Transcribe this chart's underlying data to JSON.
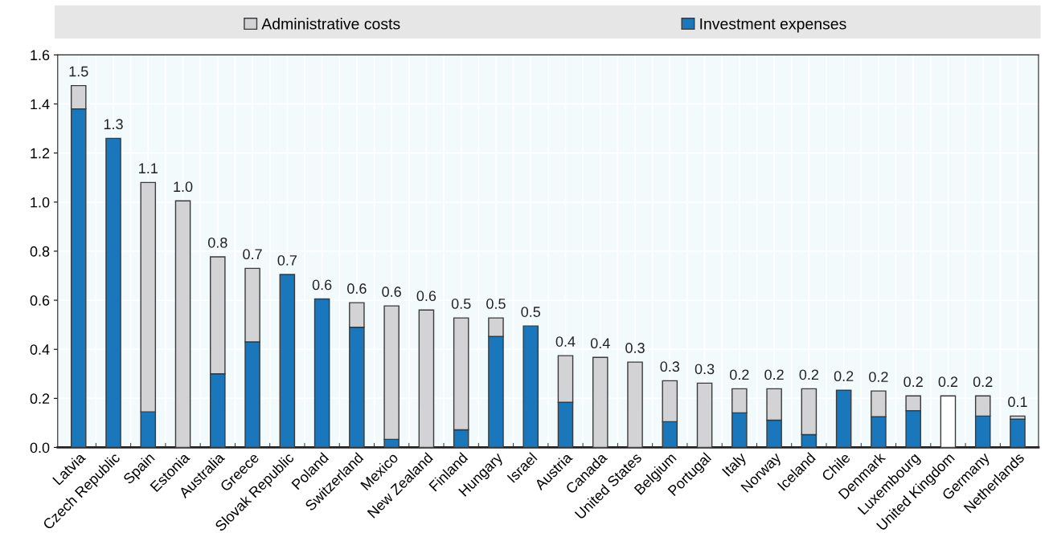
{
  "chart_data": {
    "type": "bar",
    "stacked": true,
    "categories": [
      "Latvia",
      "Czech Republic",
      "Spain",
      "Estonia",
      "Australia",
      "Greece",
      "Slovak Republic",
      "Poland",
      "Switzerland",
      "Mexico",
      "New Zealand",
      "Finland",
      "Hungary",
      "Israel",
      "Austria",
      "Canada",
      "United States",
      "Belgium",
      "Portugal",
      "Italy",
      "Norway",
      "Iceland",
      "Chile",
      "Denmark",
      "Luxembourg",
      "United Kingdom",
      "Germany",
      "Netherlands"
    ],
    "series": [
      {
        "name": "Investment expenses",
        "color": "#1a77bb",
        "values": [
          1.38,
          1.26,
          0.145,
          null,
          0.3,
          0.43,
          0.705,
          0.605,
          0.49,
          0.033,
          null,
          0.072,
          0.452,
          0.495,
          0.184,
          null,
          null,
          0.105,
          null,
          0.141,
          0.111,
          0.052,
          0.233,
          0.125,
          0.15,
          null,
          0.128,
          0.115
        ]
      },
      {
        "name": "Administrative costs",
        "color": "#d3d3d5",
        "values": [
          0.095,
          null,
          0.935,
          1.005,
          0.477,
          0.3,
          null,
          null,
          0.1,
          0.544,
          0.56,
          0.456,
          0.076,
          null,
          0.19,
          0.367,
          0.348,
          0.167,
          0.262,
          0.098,
          0.128,
          0.187,
          null,
          0.105,
          0.06,
          null,
          0.082,
          0.013
        ]
      },
      {
        "color": "#ffffff",
        "values": [
          null,
          null,
          null,
          null,
          null,
          null,
          null,
          null,
          null,
          null,
          null,
          null,
          null,
          null,
          null,
          null,
          null,
          null,
          null,
          null,
          null,
          null,
          null,
          null,
          null,
          0.21,
          null,
          null
        ]
      }
    ],
    "totals": [
      "1.5",
      "1.3",
      "1.1",
      "1.0",
      "0.8",
      "0.7",
      "0.7",
      "0.6",
      "0.6",
      "0.6",
      "0.6",
      "0.5",
      "0.5",
      "0.5",
      "0.4",
      "0.4",
      "0.3",
      "0.3",
      "0.3",
      "0.2",
      "0.2",
      "0.2",
      "0.2",
      "0.2",
      "0.2",
      "0.2",
      "0.2",
      "0.1"
    ],
    "ylim": [
      0,
      1.6
    ],
    "yticks": [
      "0.0",
      0.2,
      0.4,
      0.6,
      0.8,
      "1.0",
      1.2,
      1.4,
      1.6
    ],
    "grid": true,
    "legend": "top"
  }
}
